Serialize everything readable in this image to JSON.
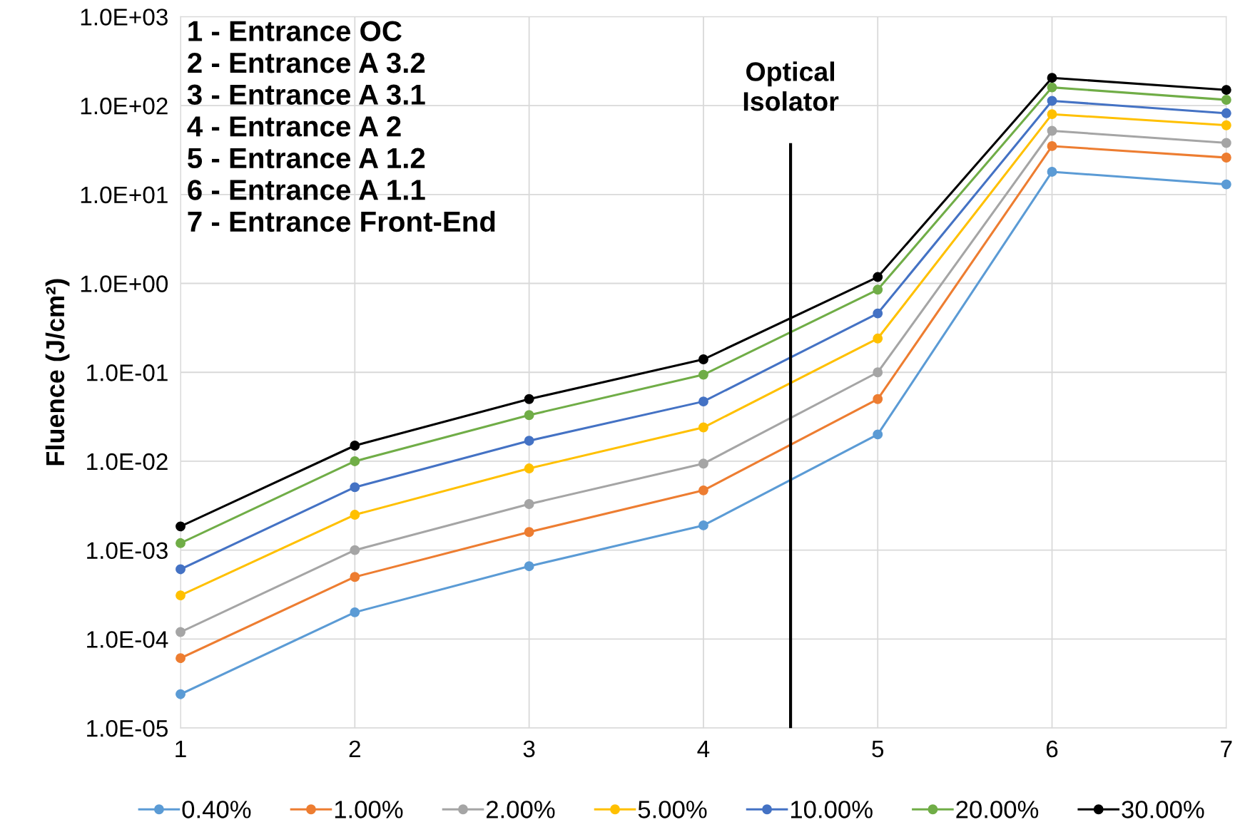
{
  "chart_data": {
    "type": "line",
    "ylabel": "Fluence (J/cm²)",
    "log": "y",
    "grid": true,
    "legend": "bottom",
    "marker": "circle",
    "line_style": "solid",
    "x": [
      1,
      2,
      3,
      4,
      5,
      6,
      7
    ],
    "xlim": [
      1,
      7
    ],
    "xticks": [
      1,
      2,
      3,
      4,
      5,
      6,
      7
    ],
    "ylim": [
      1e-05,
      1000
    ],
    "yticks": [
      {
        "value": 1e-05,
        "label": "1.0E-05"
      },
      {
        "value": 0.0001,
        "label": "1.0E-04"
      },
      {
        "value": 0.001,
        "label": "1.0E-03"
      },
      {
        "value": 0.01,
        "label": "1.0E-02"
      },
      {
        "value": 0.1,
        "label": "1.0E-01"
      },
      {
        "value": 1,
        "label": "1.0E+00"
      },
      {
        "value": 10,
        "label": "1.0E+01"
      },
      {
        "value": 100,
        "label": "1.0E+02"
      },
      {
        "value": 1000,
        "label": "1.0E+03"
      }
    ],
    "series": [
      {
        "name": "0.40%",
        "color": "#5b9bd5",
        "values": [
          2.4e-05,
          0.0002,
          0.00066,
          0.0019,
          0.02,
          18,
          13
        ]
      },
      {
        "name": "1.00%",
        "color": "#ed7d31",
        "values": [
          6.1e-05,
          0.0005,
          0.0016,
          0.0047,
          0.05,
          35,
          26
        ]
      },
      {
        "name": "2.00%",
        "color": "#a5a5a5",
        "values": [
          0.00012,
          0.001,
          0.0033,
          0.0094,
          0.1,
          52,
          38
        ]
      },
      {
        "name": "5.00%",
        "color": "#ffc000",
        "values": [
          0.00031,
          0.0025,
          0.0083,
          0.024,
          0.24,
          80,
          60
        ]
      },
      {
        "name": "10.00%",
        "color": "#4472c4",
        "values": [
          0.00061,
          0.0051,
          0.017,
          0.047,
          0.46,
          113,
          82
        ]
      },
      {
        "name": "20.00%",
        "color": "#70ad47",
        "values": [
          0.0012,
          0.01,
          0.033,
          0.094,
          0.85,
          160,
          116
        ]
      },
      {
        "name": "30.00%",
        "color": "#000000",
        "values": [
          0.00185,
          0.015,
          0.05,
          0.14,
          1.18,
          205,
          150
        ]
      }
    ],
    "ref_lines": [
      {
        "axis": "x",
        "value": 4.5,
        "label": "Optical\nIsolator",
        "color": "#000000"
      }
    ],
    "annotations": [
      "1 - Entrance OC",
      "2 - Entrance A 3.2",
      "3 - Entrance A 3.1",
      "4 - Entrance A 2",
      "5 - Entrance A 1.2",
      "6 - Entrance A 1.1",
      "7 - Entrance Front-End"
    ]
  }
}
